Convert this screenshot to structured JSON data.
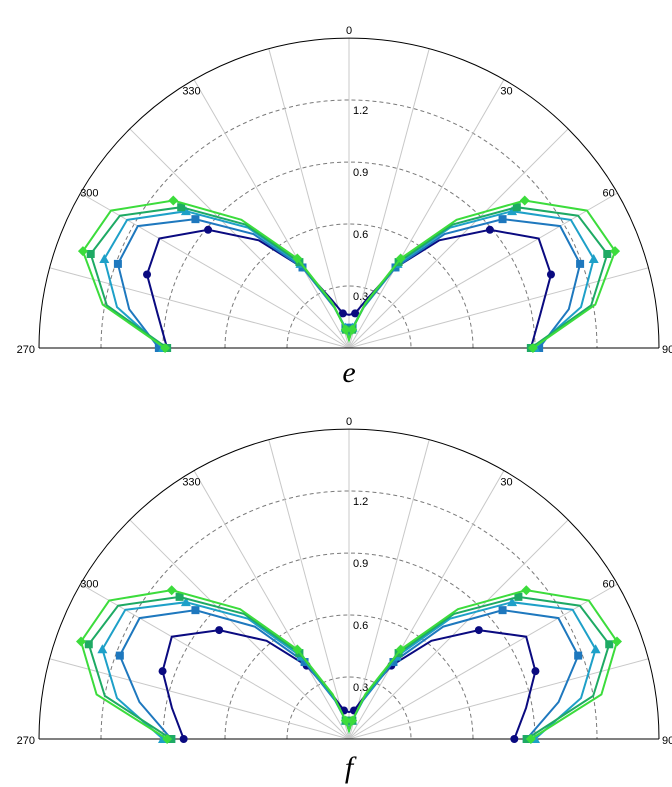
{
  "chart_data": [
    {
      "type": "polar-line",
      "panel_label": "e",
      "angular_range_deg": [
        270,
        90
      ],
      "angle_ticks": [
        "270",
        "300",
        "330",
        "0",
        "30",
        "60",
        "90"
      ],
      "radial_ticks": [
        "0.3",
        "0.6",
        "0.9",
        "1.2"
      ],
      "rmax": 1.5,
      "grid": true,
      "series": [
        {
          "color": "#0A0A80",
          "marker": "circle",
          "points": [
            [
              -90,
              0.88
            ],
            [
              -80,
              0.94
            ],
            [
              -70,
              1.04
            ],
            [
              -60,
              1.06
            ],
            [
              -50,
              0.89
            ],
            [
              -40,
              0.68
            ],
            [
              -30,
              0.45
            ],
            [
              -20,
              0.25
            ],
            [
              -10,
              0.17
            ],
            [
              0,
              0.16
            ],
            [
              10,
              0.17
            ],
            [
              20,
              0.25
            ],
            [
              30,
              0.45
            ],
            [
              40,
              0.68
            ],
            [
              50,
              0.89
            ],
            [
              60,
              1.06
            ],
            [
              70,
              1.04
            ],
            [
              80,
              0.94
            ],
            [
              90,
              0.88
            ]
          ]
        },
        {
          "color": "#1E78BE",
          "marker": "square",
          "points": [
            [
              -90,
              0.92
            ],
            [
              -80,
              1.08
            ],
            [
              -70,
              1.19
            ],
            [
              -60,
              1.18
            ],
            [
              -50,
              0.97
            ],
            [
              -40,
              0.72
            ],
            [
              -30,
              0.45
            ],
            [
              -20,
              0.21
            ],
            [
              -10,
              0.1
            ],
            [
              0,
              0.06
            ],
            [
              10,
              0.1
            ],
            [
              20,
              0.21
            ],
            [
              30,
              0.45
            ],
            [
              40,
              0.72
            ],
            [
              50,
              0.97
            ],
            [
              60,
              1.18
            ],
            [
              70,
              1.19
            ],
            [
              80,
              1.08
            ],
            [
              90,
              0.92
            ]
          ]
        },
        {
          "color": "#1EA0C8",
          "marker": "triangle",
          "points": [
            [
              -90,
              0.9
            ],
            [
              -80,
              1.14
            ],
            [
              -70,
              1.26
            ],
            [
              -60,
              1.24
            ],
            [
              -50,
              1.03
            ],
            [
              -40,
              0.76
            ],
            [
              -30,
              0.47
            ],
            [
              -20,
              0.22
            ],
            [
              -10,
              0.1
            ],
            [
              0,
              0.05
            ],
            [
              10,
              0.1
            ],
            [
              20,
              0.22
            ],
            [
              30,
              0.47
            ],
            [
              40,
              0.76
            ],
            [
              50,
              1.03
            ],
            [
              60,
              1.24
            ],
            [
              70,
              1.26
            ],
            [
              80,
              1.14
            ],
            [
              90,
              0.9
            ]
          ]
        },
        {
          "color": "#1EAA64",
          "marker": "square",
          "points": [
            [
              -90,
              0.88
            ],
            [
              -80,
              1.19
            ],
            [
              -70,
              1.33
            ],
            [
              -60,
              1.28
            ],
            [
              -50,
              1.06
            ],
            [
              -40,
              0.78
            ],
            [
              -30,
              0.48
            ],
            [
              -20,
              0.22
            ],
            [
              -10,
              0.09
            ],
            [
              0,
              0.04
            ],
            [
              10,
              0.09
            ],
            [
              20,
              0.22
            ],
            [
              30,
              0.48
            ],
            [
              40,
              0.78
            ],
            [
              50,
              1.06
            ],
            [
              60,
              1.28
            ],
            [
              70,
              1.33
            ],
            [
              80,
              1.19
            ],
            [
              90,
              0.88
            ]
          ]
        },
        {
          "color": "#3CDC3C",
          "marker": "diamond",
          "points": [
            [
              -90,
              0.89
            ],
            [
              -80,
              1.21
            ],
            [
              -70,
              1.37
            ],
            [
              -60,
              1.33
            ],
            [
              -50,
              1.11
            ],
            [
              -40,
              0.81
            ],
            [
              -30,
              0.5
            ],
            [
              -20,
              0.23
            ],
            [
              -10,
              0.09
            ],
            [
              0,
              0.04
            ],
            [
              10,
              0.09
            ],
            [
              20,
              0.23
            ],
            [
              30,
              0.5
            ],
            [
              40,
              0.81
            ],
            [
              50,
              1.11
            ],
            [
              60,
              1.33
            ],
            [
              70,
              1.37
            ],
            [
              80,
              1.21
            ],
            [
              90,
              0.89
            ]
          ]
        }
      ]
    },
    {
      "type": "polar-line",
      "panel_label": "f",
      "angular_range_deg": [
        270,
        90
      ],
      "angle_ticks": [
        "270",
        "300",
        "330",
        "0",
        "30",
        "60",
        "90"
      ],
      "radial_ticks": [
        "0.3",
        "0.6",
        "0.9",
        "1.2"
      ],
      "rmax": 1.5,
      "grid": true,
      "series": [
        {
          "color": "#0A0A80",
          "marker": "circle",
          "points": [
            [
              -90,
              0.8
            ],
            [
              -80,
              0.87
            ],
            [
              -70,
              0.96
            ],
            [
              -60,
              0.99
            ],
            [
              -50,
              0.82
            ],
            [
              -40,
              0.62
            ],
            [
              -30,
              0.41
            ],
            [
              -20,
              0.22
            ],
            [
              -10,
              0.14
            ],
            [
              0,
              0.13
            ],
            [
              10,
              0.14
            ],
            [
              20,
              0.22
            ],
            [
              30,
              0.41
            ],
            [
              40,
              0.62
            ],
            [
              50,
              0.82
            ],
            [
              60,
              0.99
            ],
            [
              70,
              0.96
            ],
            [
              80,
              0.87
            ],
            [
              90,
              0.8
            ]
          ]
        },
        {
          "color": "#1E78BE",
          "marker": "square",
          "points": [
            [
              -90,
              0.86
            ],
            [
              -80,
              1.03
            ],
            [
              -70,
              1.18
            ],
            [
              -60,
              1.17
            ],
            [
              -50,
              0.97
            ],
            [
              -40,
              0.71
            ],
            [
              -30,
              0.43
            ],
            [
              -20,
              0.2
            ],
            [
              -10,
              0.09
            ],
            [
              0,
              0.05
            ],
            [
              10,
              0.09
            ],
            [
              20,
              0.2
            ],
            [
              30,
              0.43
            ],
            [
              40,
              0.71
            ],
            [
              50,
              0.97
            ],
            [
              60,
              1.17
            ],
            [
              70,
              1.18
            ],
            [
              80,
              1.03
            ],
            [
              90,
              0.86
            ]
          ]
        },
        {
          "color": "#1EA0C8",
          "marker": "triangle",
          "points": [
            [
              -90,
              0.9
            ],
            [
              -80,
              1.14
            ],
            [
              -70,
              1.27
            ],
            [
              -60,
              1.25
            ],
            [
              -50,
              1.03
            ],
            [
              -40,
              0.76
            ],
            [
              -30,
              0.46
            ],
            [
              -20,
              0.21
            ],
            [
              -10,
              0.09
            ],
            [
              0,
              0.04
            ],
            [
              10,
              0.09
            ],
            [
              20,
              0.21
            ],
            [
              30,
              0.46
            ],
            [
              40,
              0.76
            ],
            [
              50,
              1.03
            ],
            [
              60,
              1.25
            ],
            [
              70,
              1.27
            ],
            [
              80,
              1.14
            ],
            [
              90,
              0.9
            ]
          ]
        },
        {
          "color": "#1EAA64",
          "marker": "square",
          "points": [
            [
              -90,
              0.86
            ],
            [
              -80,
              1.2
            ],
            [
              -70,
              1.34
            ],
            [
              -60,
              1.29
            ],
            [
              -50,
              1.07
            ],
            [
              -40,
              0.79
            ],
            [
              -30,
              0.48
            ],
            [
              -20,
              0.22
            ],
            [
              -10,
              0.09
            ],
            [
              0,
              0.04
            ],
            [
              10,
              0.09
            ],
            [
              20,
              0.22
            ],
            [
              30,
              0.48
            ],
            [
              40,
              0.79
            ],
            [
              50,
              1.07
            ],
            [
              60,
              1.29
            ],
            [
              70,
              1.34
            ],
            [
              80,
              1.2
            ],
            [
              90,
              0.86
            ]
          ]
        },
        {
          "color": "#3CDC3C",
          "marker": "diamond",
          "points": [
            [
              -90,
              0.88
            ],
            [
              -80,
              1.24
            ],
            [
              -70,
              1.38
            ],
            [
              -60,
              1.34
            ],
            [
              -50,
              1.12
            ],
            [
              -40,
              0.82
            ],
            [
              -30,
              0.5
            ],
            [
              -20,
              0.23
            ],
            [
              -10,
              0.09
            ],
            [
              0,
              0.04
            ],
            [
              10,
              0.09
            ],
            [
              20,
              0.23
            ],
            [
              30,
              0.5
            ],
            [
              40,
              0.82
            ],
            [
              50,
              1.12
            ],
            [
              60,
              1.34
            ],
            [
              70,
              1.38
            ],
            [
              80,
              1.24
            ],
            [
              90,
              0.88
            ]
          ]
        }
      ]
    }
  ]
}
